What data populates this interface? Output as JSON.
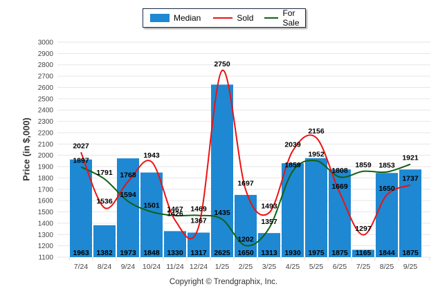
{
  "chart_data": {
    "type": "bar",
    "title": "",
    "xlabel": "",
    "ylabel": "Price (in $,000)",
    "ylim": [
      1100,
      3000
    ],
    "ytick_step": 100,
    "grid": true,
    "legend_position": "top-center",
    "categories": [
      "7/24",
      "8/24",
      "9/24",
      "10/24",
      "11/24",
      "12/24",
      "1/25",
      "2/25",
      "3/25",
      "4/25",
      "5/25",
      "6/25",
      "7/25",
      "8/25",
      "9/25"
    ],
    "series": [
      {
        "name": "Median",
        "type": "bar",
        "color": "#1e88d2",
        "values": [
          1963,
          1382,
          1973,
          1848,
          1330,
          1317,
          2625,
          1650,
          1313,
          1930,
          1975,
          1875,
          1165,
          1844,
          1875
        ]
      },
      {
        "name": "Sold",
        "type": "line",
        "color": "#ee1111",
        "values": [
          2027,
          1536,
          1768,
          1943,
          1426,
          1367,
          2750,
          1697,
          1493,
          2039,
          2156,
          1669,
          1297,
          1650,
          1737
        ]
      },
      {
        "name": "For Sale",
        "type": "line",
        "color": "#106010",
        "values": [
          1897,
          1791,
          1594,
          1501,
          1467,
          1469,
          1435,
          1202,
          1357,
          1859,
          1952,
          1808,
          1859,
          1853,
          1921
        ]
      }
    ]
  },
  "legend": {
    "items": [
      {
        "label": "Median",
        "color": "#1e88d2"
      },
      {
        "label": "Sold",
        "color": "#ee1111"
      },
      {
        "label": "For Sale",
        "color": "#106010"
      }
    ]
  },
  "footer": {
    "copyright": "Copyright © Trendgraphix, Inc."
  }
}
